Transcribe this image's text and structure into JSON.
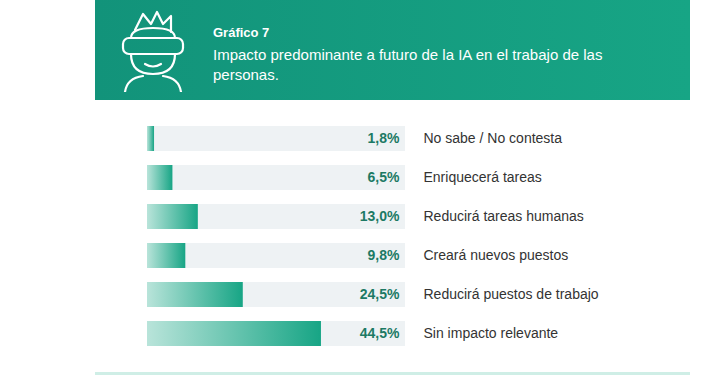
{
  "chart_data": {
    "type": "bar",
    "orientation": "horizontal",
    "subtitle": "Gráfico 7",
    "title": "Impacto predominante a futuro de la IA en el trabajo de las personas.",
    "categories": [
      "No sabe / No contesta",
      "Enriquecerá tareas",
      "Reducirá tareas humanas",
      "Creará nuevos puestos",
      "Reducirá puestos de trabajo",
      "Sin impacto relevante"
    ],
    "values": [
      1.8,
      6.5,
      13.0,
      9.8,
      24.5,
      44.5
    ],
    "value_labels": [
      "1,8%",
      "6,5%",
      "13,0%",
      "9,8%",
      "24,5%",
      "44,5%"
    ],
    "color": "#17a585",
    "xlim": [
      0,
      66
    ],
    "tick_labels": false,
    "data_labels": true
  }
}
